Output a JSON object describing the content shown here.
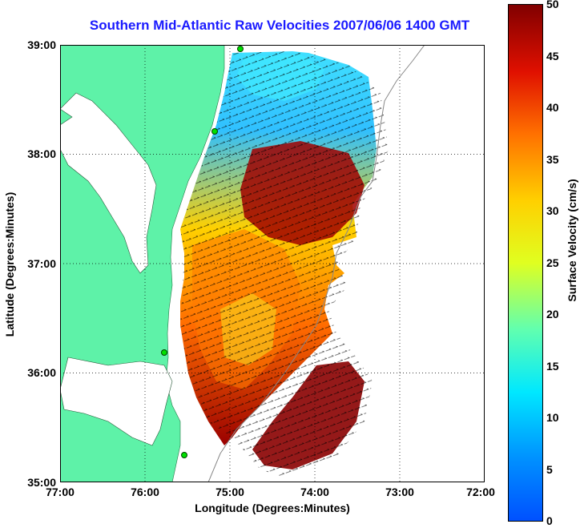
{
  "title": "Southern Mid-Atlantic Raw Velocities 2007/06/06 1400 GMT",
  "xlabel": "Longitude (Degrees:Minutes)",
  "ylabel": "Latitude (Degrees:Minutes)",
  "colorbar_label": "Surface Velocity (cm/s)",
  "x_ticks": [
    "77:00",
    "76:00",
    "75:00",
    "74:00",
    "73:00",
    "72:00"
  ],
  "y_ticks": [
    "39:00",
    "38:00",
    "37:00",
    "36:00",
    "35:00"
  ],
  "colorbar_ticks": [
    "50",
    "45",
    "40",
    "35",
    "30",
    "25",
    "20",
    "15",
    "10",
    "5",
    "0"
  ],
  "colors": {
    "title": "#1a1aff",
    "land": "#5ef2a8",
    "ocean": "#ffffff",
    "arrows": "#000000"
  },
  "chart_data": {
    "type": "heatmap",
    "title": "Southern Mid-Atlantic Raw Velocities 2007/06/06 1400 GMT",
    "xlabel": "Longitude (Degrees:Minutes)",
    "ylabel": "Latitude (Degrees:Minutes)",
    "xlim": [
      -77,
      -72
    ],
    "ylim": [
      35,
      39
    ],
    "color_range": [
      0,
      50
    ],
    "colormap": "jet",
    "colorbar_label": "Surface Velocity (cm/s)",
    "grid": true
  }
}
